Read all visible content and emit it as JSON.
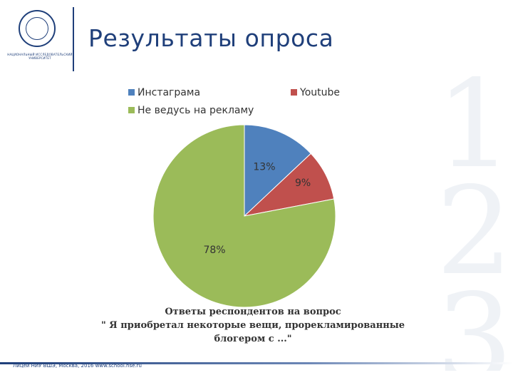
{
  "page": {
    "title": "Результаты опроса",
    "caption_line1": "Ответы респондентов на вопрос",
    "caption_line2": "\" Я приобретал некоторые вещи, прорекламированные",
    "caption_line3": "блогером с ...\"",
    "footer": "Лицей НИУ ВШЭ, Москва, 2016   www.school.hse.ru"
  },
  "logo": {
    "text": "НАЦИОНАЛЬНЫЙ ИССЛЕДОВАТЕЛЬСКИЙ УНИВЕРСИТЕТ"
  },
  "colors": {
    "brand": "#1f3f7a",
    "slice_instagram": "#4f81bd",
    "slice_youtube": "#c0504d",
    "slice_none": "#9bbb59"
  },
  "chart_data": {
    "type": "pie",
    "title": "",
    "legend_position": "top",
    "categories": [
      "Инстаграма",
      "Youtube",
      "Не ведусь на рекламу"
    ],
    "values": [
      13,
      9,
      78
    ],
    "labels": [
      "13%",
      "9%",
      "78%"
    ]
  }
}
